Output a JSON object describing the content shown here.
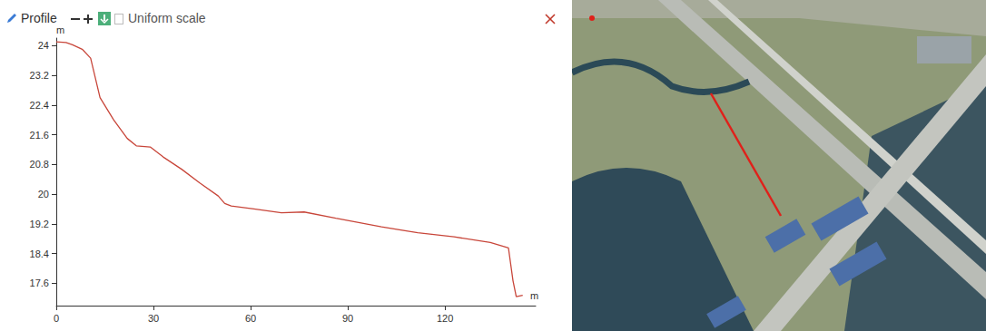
{
  "chart_data": {
    "type": "line",
    "title": "Profile",
    "annotations": [
      "Uniform scale"
    ],
    "xlabel": "m",
    "ylabel": "m",
    "x": [
      0,
      3,
      5,
      8,
      10.6,
      13.5,
      17.7,
      21.9,
      24.7,
      29,
      33,
      38.7,
      44.3,
      50,
      52,
      54,
      61,
      69.5,
      76.5,
      86.3,
      100.4,
      111.6,
      122.8,
      134,
      139.6,
      141,
      142,
      144
    ],
    "values": [
      24.1,
      24.08,
      24.02,
      23.9,
      23.66,
      22.6,
      22.0,
      21.5,
      21.3,
      21.27,
      21.0,
      20.67,
      20.3,
      19.95,
      19.75,
      19.68,
      19.6,
      19.5,
      19.52,
      19.35,
      19.12,
      18.96,
      18.85,
      18.7,
      18.55,
      17.67,
      17.24,
      17.28
    ],
    "color": "#c8463a",
    "xlim": [
      0,
      148
    ],
    "xticks": [
      0,
      30,
      60,
      90,
      120
    ],
    "ylim": [
      17.0,
      24.2
    ],
    "yticks": [
      17.6,
      18.4,
      19.2,
      20,
      20.8,
      21.6,
      22.4,
      23.2,
      24
    ],
    "grid": false
  }
}
